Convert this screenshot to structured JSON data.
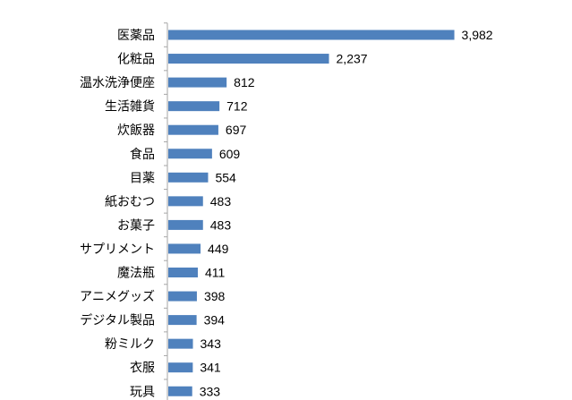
{
  "chart_data": {
    "type": "bar",
    "orientation": "horizontal",
    "categories": [
      "医薬品",
      "化粧品",
      "温水洗浄便座",
      "生活雑貨",
      "炊飯器",
      "食品",
      "目薬",
      "紙おむつ",
      "お菓子",
      "サプリメント",
      "魔法瓶",
      "アニメグッズ",
      "デジタル製品",
      "粉ミルク",
      "衣服",
      "玩具"
    ],
    "value_labels": [
      "3,982",
      "2,237",
      "812",
      "712",
      "697",
      "609",
      "554",
      "483",
      "483",
      "449",
      "411",
      "398",
      "394",
      "343",
      "341",
      "333"
    ],
    "values": [
      3982,
      2237,
      812,
      712,
      697,
      609,
      554,
      483,
      483,
      449,
      411,
      398,
      394,
      343,
      341,
      333
    ],
    "xlim": [
      0,
      4000
    ],
    "title": "",
    "xlabel": "",
    "ylabel": "",
    "grid": false,
    "legend": "none",
    "bar_color": "#4f81bd",
    "axis_color": "#a6a6a6"
  }
}
